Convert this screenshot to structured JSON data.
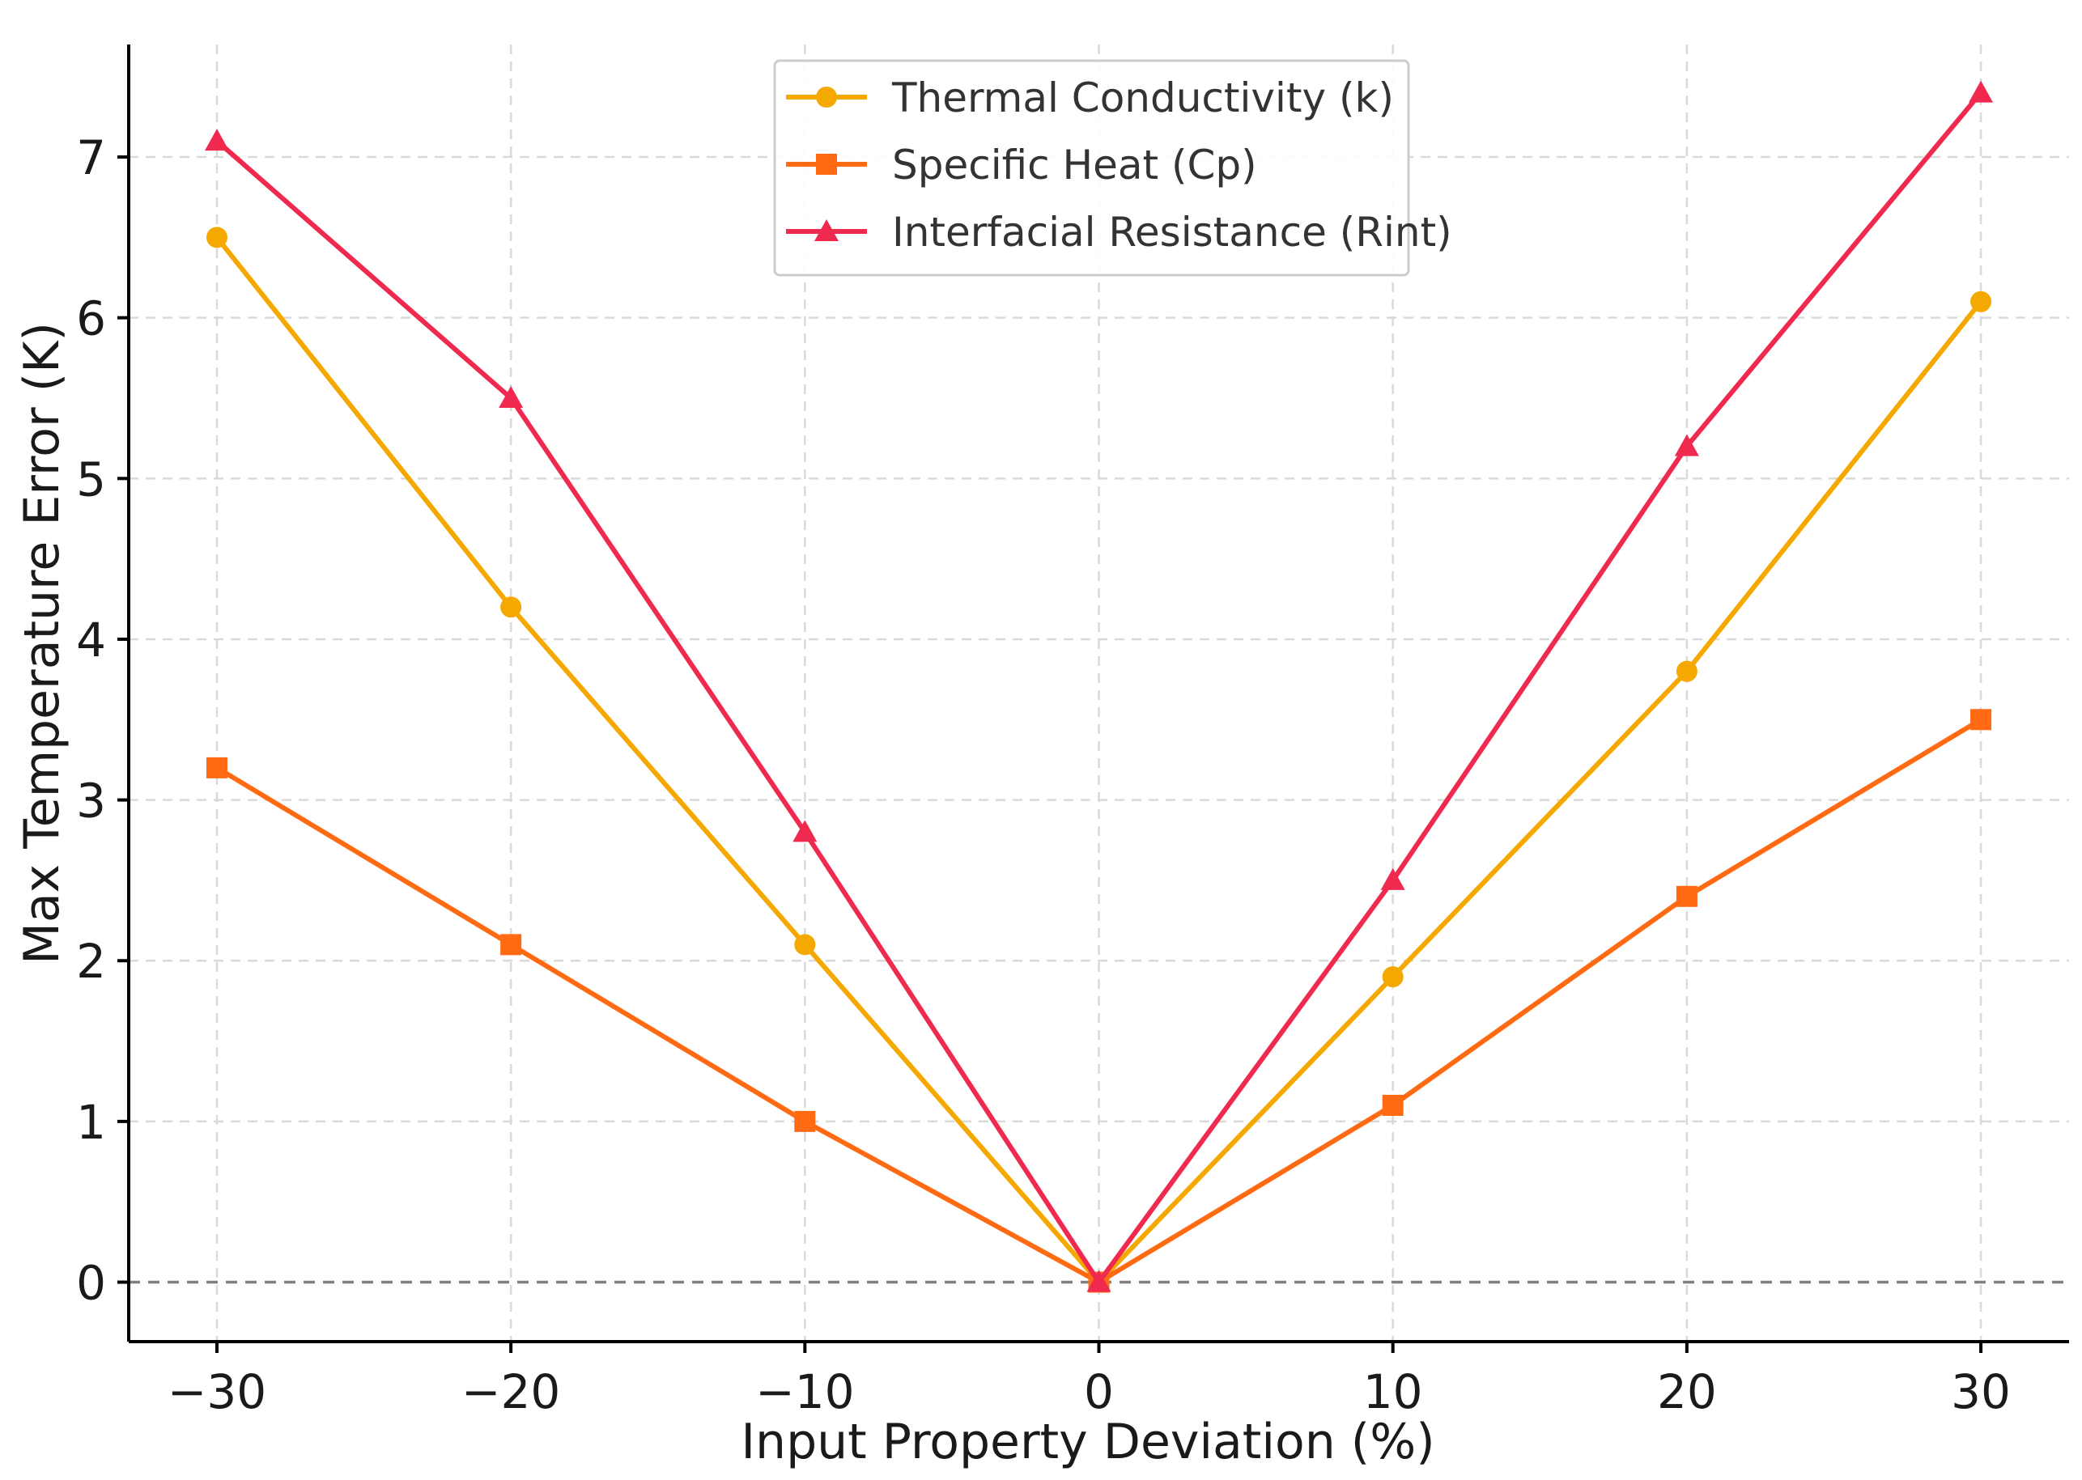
{
  "chart_data": {
    "type": "line",
    "title": "",
    "xlabel": "Input Property Deviation (%)",
    "ylabel": "Max Temperature Error (K)",
    "x": [
      -30,
      -20,
      -10,
      0,
      10,
      20,
      30
    ],
    "x_tick_labels": [
      "−30",
      "−20",
      "−10",
      "0",
      "10",
      "20",
      "30"
    ],
    "y_ticks": [
      0,
      1,
      2,
      3,
      4,
      5,
      6,
      7
    ],
    "y_tick_labels": [
      "0",
      "1",
      "2",
      "3",
      "4",
      "5",
      "6",
      "7"
    ],
    "xlim": [
      -33,
      33
    ],
    "ylim": [
      -0.37,
      7.7
    ],
    "grid": true,
    "reference_line": {
      "y": 0,
      "style": "dashed",
      "color": "#808080"
    },
    "legend_position": "top-center",
    "series": [
      {
        "name": "Thermal Conductivity (k)",
        "color": "#F5A800",
        "marker": "circle",
        "values": [
          6.5,
          4.2,
          2.1,
          0,
          1.9,
          3.8,
          6.1
        ]
      },
      {
        "name": "Specific Heat (Cp)",
        "color": "#FF6A13",
        "marker": "square",
        "values": [
          3.2,
          2.1,
          1.0,
          0,
          1.1,
          2.4,
          3.5
        ]
      },
      {
        "name": "Interfacial Resistance (Rint)",
        "color": "#F0294F",
        "marker": "triangle",
        "values": [
          7.1,
          5.5,
          2.8,
          0,
          2.5,
          5.2,
          7.4
        ]
      }
    ]
  }
}
